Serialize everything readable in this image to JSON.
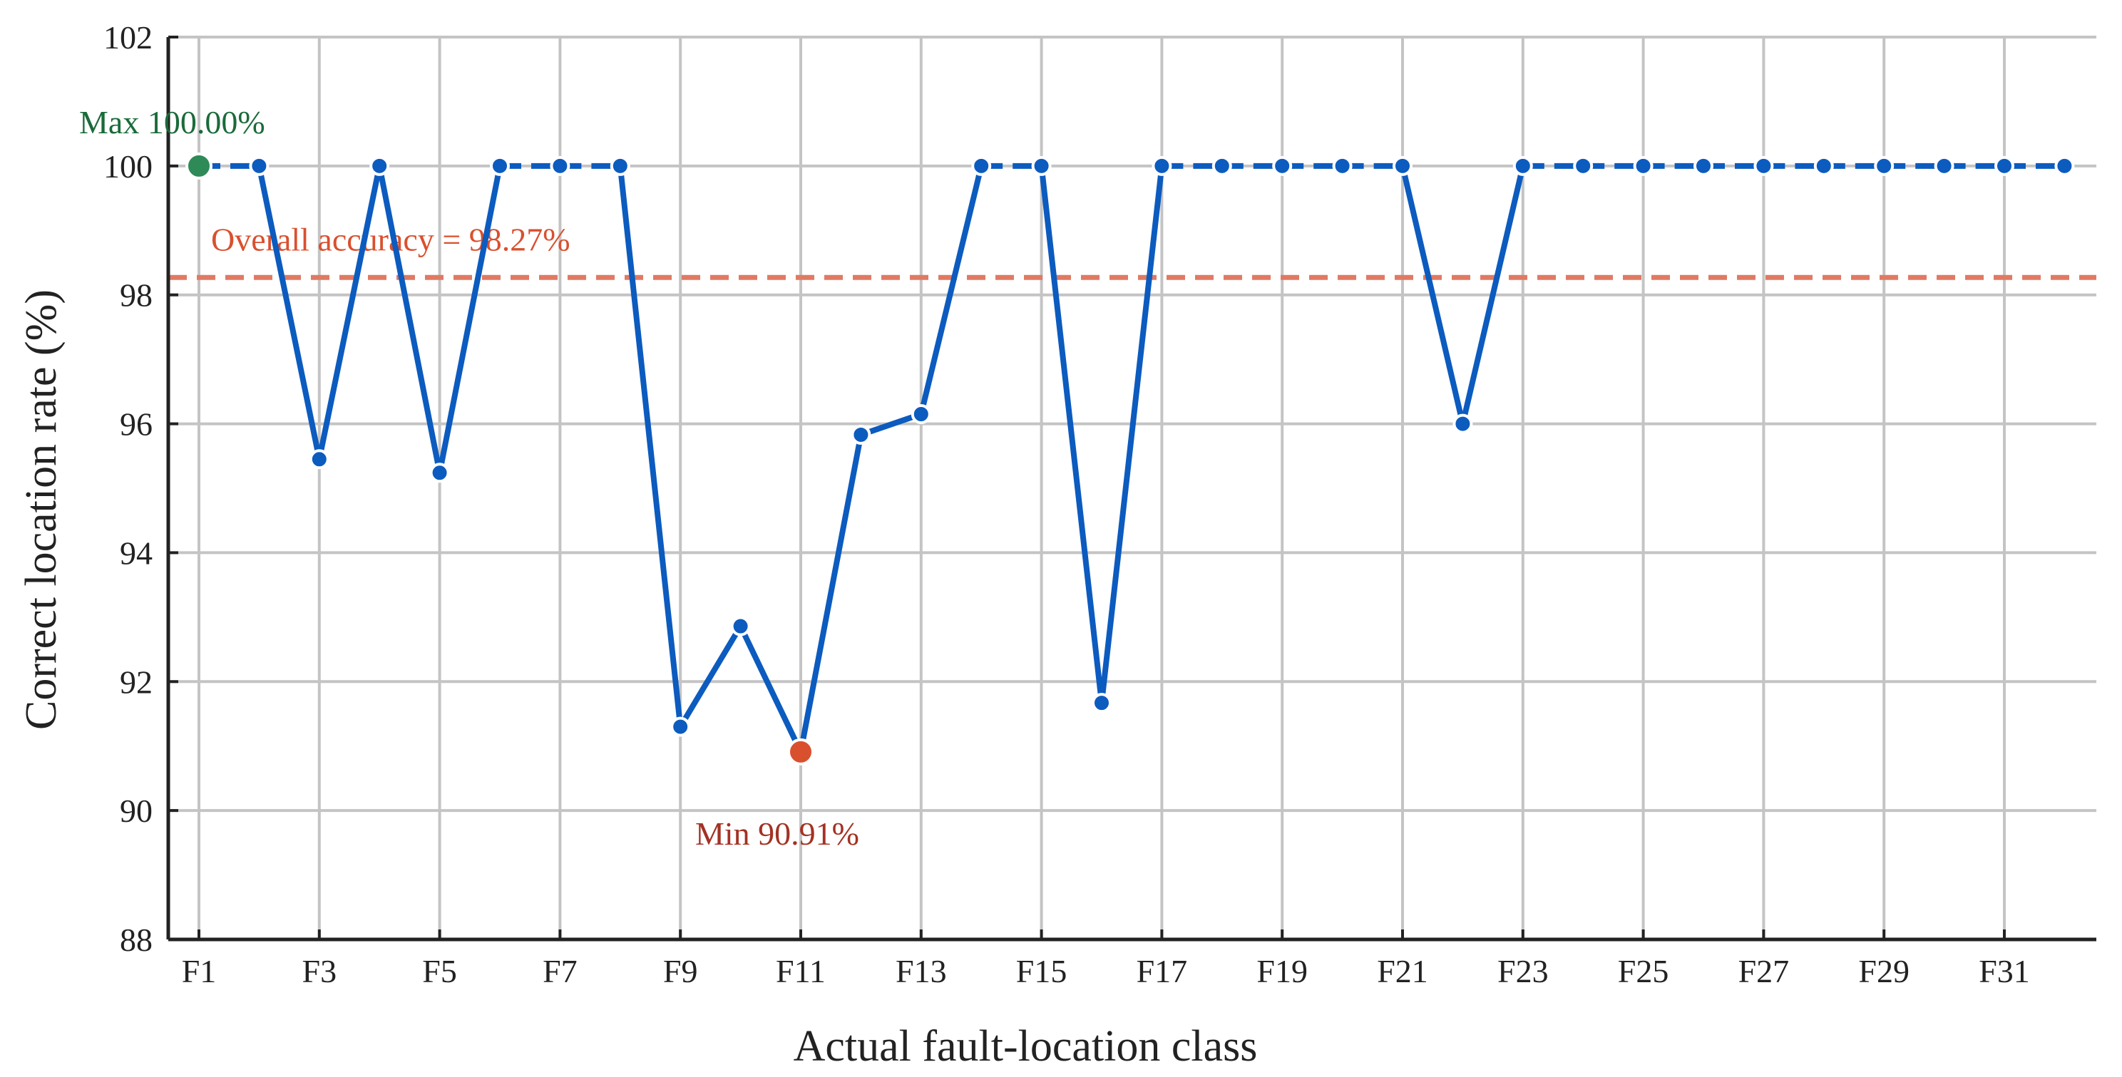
{
  "chart_data": {
    "type": "line",
    "xlabel": "Actual fault-location class",
    "ylabel": "Correct location rate (%)",
    "ylim": [
      88,
      102
    ],
    "yticks": [
      88,
      90,
      92,
      94,
      96,
      98,
      100,
      102
    ],
    "xticks": [
      "F1",
      "F3",
      "F5",
      "F7",
      "F9",
      "F11",
      "F13",
      "F15",
      "F17",
      "F19",
      "F21",
      "F23",
      "F25",
      "F27",
      "F29",
      "F31"
    ],
    "grid": true,
    "categories": [
      "F1",
      "F2",
      "F3",
      "F4",
      "F5",
      "F6",
      "F7",
      "F8",
      "F9",
      "F10",
      "F11",
      "F12",
      "F13",
      "F14",
      "F15",
      "F16",
      "F17",
      "F18",
      "F19",
      "F20",
      "F21",
      "F22",
      "F23",
      "F24",
      "F25",
      "F26",
      "F27",
      "F28",
      "F29",
      "F30",
      "F31",
      "F32"
    ],
    "series": [
      {
        "values": [
          100,
          100,
          95.45,
          100,
          95.24,
          100,
          100,
          100,
          91.3,
          92.86,
          90.91,
          95.83,
          96.15,
          100,
          100,
          91.67,
          100,
          100,
          100,
          100,
          100,
          96.0,
          100,
          100,
          100,
          100,
          100,
          100,
          100,
          100,
          100,
          100
        ],
        "color": "#0c5bbf"
      }
    ],
    "reference_line": {
      "value": 98.27,
      "label": "Overall accuracy = 98.27%",
      "color": "#e07a63"
    },
    "annotations": [
      {
        "category": "F1",
        "value": 100.0,
        "label": "Max 100.00%",
        "color": "#1a6b3a",
        "marker_color": "#2e8b57"
      },
      {
        "category": "F11",
        "value": 90.91,
        "label": "Min 90.91%",
        "color": "#a33224",
        "marker_color": "#d9502f"
      }
    ]
  }
}
